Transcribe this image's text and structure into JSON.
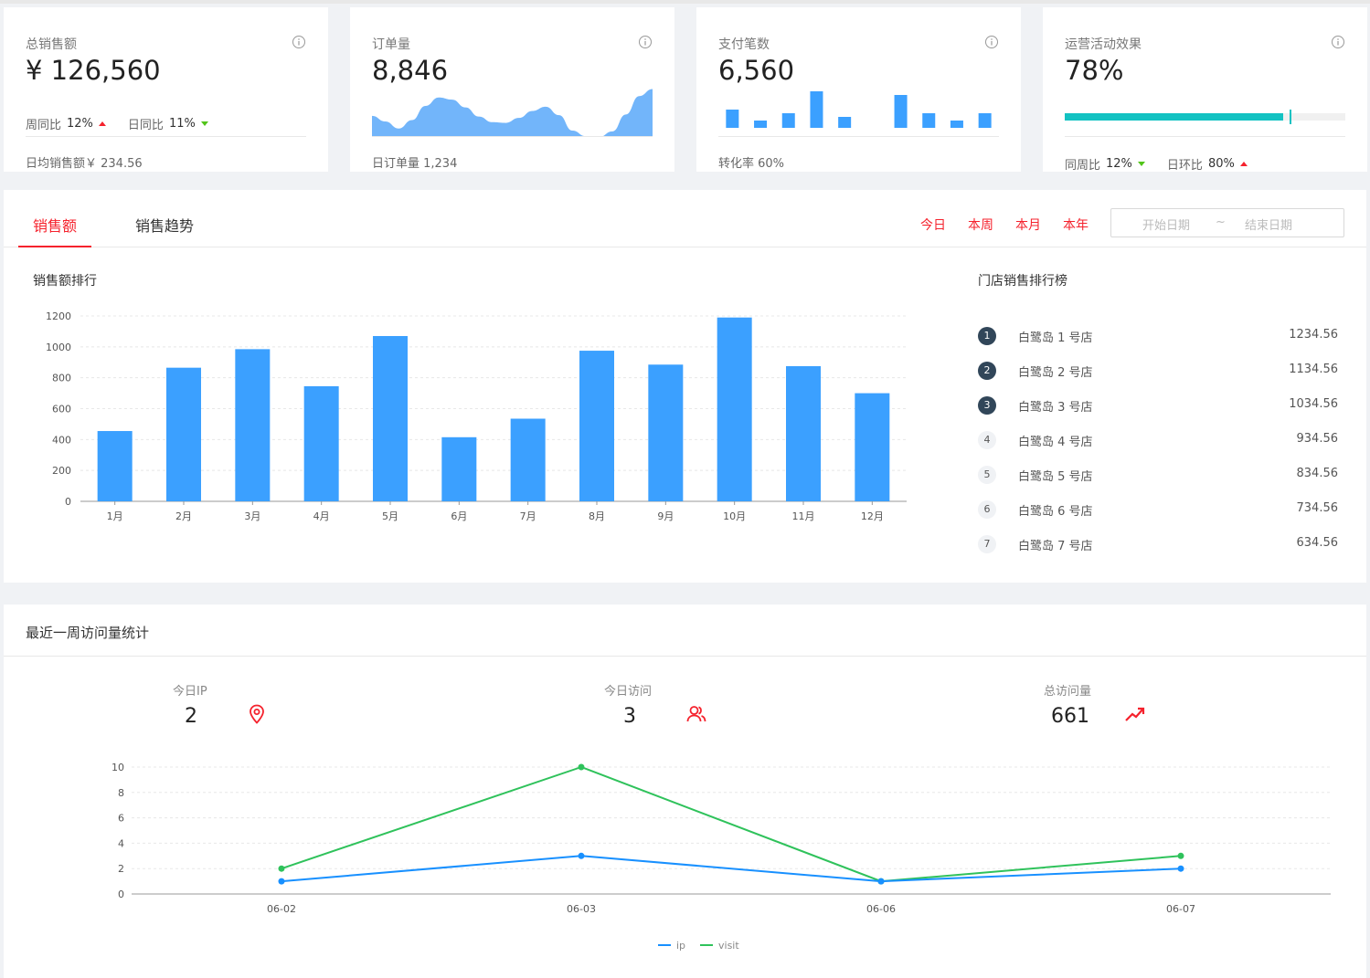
{
  "cards": [
    {
      "label": "总销售额",
      "value": "¥ 126,560",
      "trends": [
        {
          "label": "周同比",
          "pct": "12%",
          "dir": "up"
        },
        {
          "label": "日同比",
          "pct": "11%",
          "dir": "down"
        }
      ],
      "footer": "日均销售额￥ 234.56"
    },
    {
      "label": "订单量",
      "value": "8,846",
      "footer": "日订单量 1,234"
    },
    {
      "label": "支付笔数",
      "value": "6,560",
      "footer": "转化率 60%"
    },
    {
      "label": "运营活动效果",
      "value": "78%",
      "progress": 0.78,
      "trends": [
        {
          "label": "同周比",
          "pct": "12%",
          "dir": "down"
        },
        {
          "label": "日环比",
          "pct": "80%",
          "dir": "up"
        }
      ]
    }
  ],
  "sales_panel": {
    "tabs": [
      "销售额",
      "销售趋势"
    ],
    "ranges": [
      "今日",
      "本周",
      "本月",
      "本年"
    ],
    "date_start_placeholder": "开始日期",
    "date_sep": "~",
    "date_end_placeholder": "结束日期",
    "chart_title": "销售额排行",
    "ranking_title": "门店销售排行榜",
    "ranking": [
      {
        "rank": "1",
        "name": "白鹭岛 1 号店",
        "value": "1234.56"
      },
      {
        "rank": "2",
        "name": "白鹭岛 2 号店",
        "value": "1134.56"
      },
      {
        "rank": "3",
        "name": "白鹭岛 3 号店",
        "value": "1034.56"
      },
      {
        "rank": "4",
        "name": "白鹭岛 4 号店",
        "value": "934.56"
      },
      {
        "rank": "5",
        "name": "白鹭岛 5 号店",
        "value": "834.56"
      },
      {
        "rank": "6",
        "name": "白鹭岛 6 号店",
        "value": "734.56"
      },
      {
        "rank": "7",
        "name": "白鹭岛 7 号店",
        "value": "634.56"
      }
    ]
  },
  "visit_panel": {
    "title": "最近一周访问量统计",
    "metrics": [
      {
        "label": "今日IP",
        "value": "2",
        "icon": "location-pin-icon"
      },
      {
        "label": "今日访问",
        "value": "3",
        "icon": "users-icon"
      },
      {
        "label": "总访问量",
        "value": "661",
        "icon": "trend-up-icon"
      }
    ]
  },
  "colors": {
    "accent": "#f5222d",
    "bar": "#3ba0ff",
    "ip": "#1890ff",
    "visit": "#2fc25b",
    "progress": "#13c2c2",
    "up": "#f5222d",
    "down": "#52c41a"
  },
  "chart_data": [
    {
      "type": "bar",
      "categories": [
        "1月",
        "2月",
        "3月",
        "4月",
        "5月",
        "6月",
        "7月",
        "8月",
        "9月",
        "10月",
        "11月",
        "12月"
      ],
      "values": [
        455,
        865,
        985,
        745,
        1070,
        415,
        535,
        975,
        885,
        1190,
        875,
        700
      ],
      "yticks": [
        0,
        200,
        400,
        600,
        800,
        1000,
        1200
      ],
      "ylim": [
        0,
        1200
      ],
      "grid": true
    },
    {
      "type": "area",
      "values": [
        3,
        2.2,
        1.2,
        2.4,
        4.4,
        5.6,
        5.3,
        4.2,
        2.9,
        2.1,
        2.0,
        2.7,
        3.7,
        4.3,
        3.1,
        0.9,
        0.1,
        0.0,
        0.8,
        3.2,
        5.8,
        6.8
      ],
      "ylim": [
        0,
        7
      ]
    },
    {
      "type": "bar",
      "values": [
        5,
        2,
        4,
        10,
        3,
        0,
        9,
        4,
        2,
        4
      ],
      "ylim": [
        0,
        10
      ]
    },
    {
      "type": "line",
      "x": [
        "06-02",
        "06-03",
        "06-06",
        "06-07"
      ],
      "series": [
        {
          "name": "ip",
          "values": [
            1,
            3,
            1,
            2
          ]
        },
        {
          "name": "visit",
          "values": [
            2,
            10,
            1,
            3
          ]
        }
      ],
      "yticks": [
        0,
        2,
        4,
        6,
        8,
        10
      ],
      "ylim": [
        0,
        10
      ],
      "legend": "bottom",
      "grid": true
    }
  ]
}
